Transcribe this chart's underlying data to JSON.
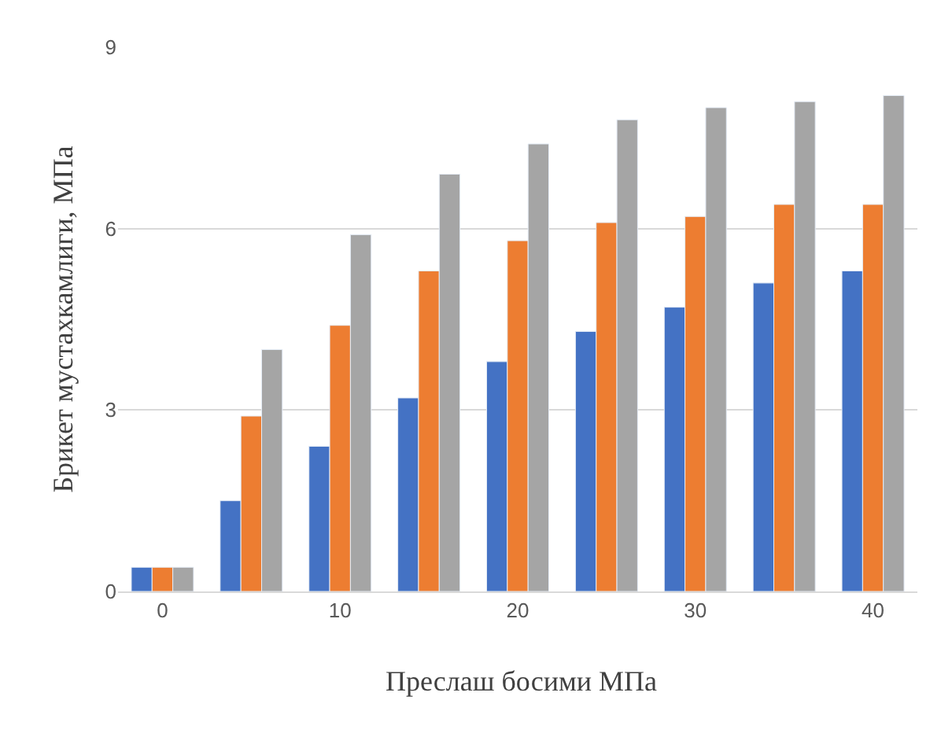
{
  "chart_data": {
    "type": "bar",
    "xlabel": "Преслаш босими МПа",
    "ylabel": "Брикет мустахкамлиги, МПа",
    "categories": [
      "0",
      null,
      "10",
      null,
      "20",
      null,
      "30",
      null,
      "40"
    ],
    "series": [
      {
        "color": "#4472c4",
        "values": [
          0.4,
          1.5,
          2.4,
          3.2,
          3.8,
          4.3,
          4.7,
          5.1,
          5.3
        ]
      },
      {
        "color": "#ed7d31",
        "values": [
          0.4,
          2.9,
          4.4,
          5.3,
          5.8,
          6.1,
          6.2,
          6.4,
          6.4
        ]
      },
      {
        "color": "#a5a5a5",
        "values": [
          0.4,
          4.0,
          5.9,
          6.9,
          7.4,
          7.8,
          8.0,
          8.1,
          8.2
        ]
      }
    ],
    "ylim": [
      0,
      9
    ],
    "yticks": [
      0,
      3,
      6,
      9
    ],
    "grid": "y",
    "legend": false
  }
}
